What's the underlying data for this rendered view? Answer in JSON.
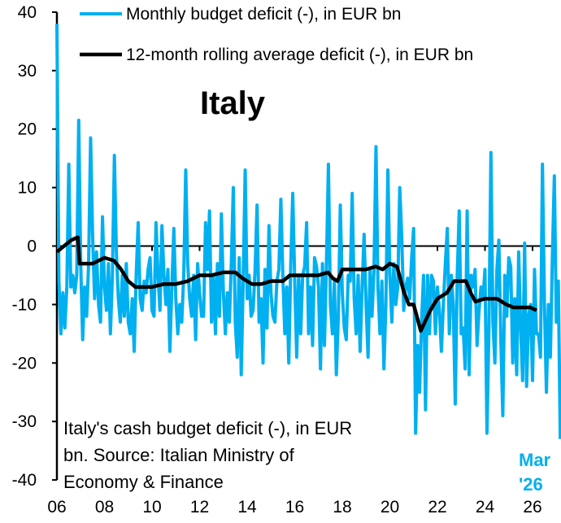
{
  "chart_data": {
    "type": "line",
    "title": "Italy",
    "xlabel": "",
    "ylabel": "",
    "ylim": [
      -40,
      40
    ],
    "yticks": [
      40,
      30,
      20,
      10,
      0,
      -10,
      -20,
      -30,
      -40
    ],
    "xlim": [
      2006,
      2026.5
    ],
    "xticks": [
      {
        "value": 2006,
        "label": "06"
      },
      {
        "value": 2008,
        "label": "08"
      },
      {
        "value": 2010,
        "label": "10"
      },
      {
        "value": 2012,
        "label": "12"
      },
      {
        "value": 2014,
        "label": "14"
      },
      {
        "value": 2016,
        "label": "16"
      },
      {
        "value": 2018,
        "label": "18"
      },
      {
        "value": 2020,
        "label": "20"
      },
      {
        "value": 2022,
        "label": "22"
      },
      {
        "value": 2024,
        "label": "24"
      },
      {
        "value": 2026,
        "label": "26"
      }
    ],
    "grid": false,
    "legend_position": "top",
    "annotation": [
      "Italy's cash budget deficit (-), in EUR",
      "bn. Source: Italian Ministry of",
      "Economy & Finance"
    ],
    "last_label": [
      "Mar",
      "'26"
    ],
    "colors": {
      "monthly": "#00B0F0",
      "rolling": "#000000"
    },
    "series": [
      {
        "name": "Monthly budget deficit (-), in EUR bn",
        "start": "2006-01",
        "frequency": "monthly",
        "values": [
          38,
          -6,
          -15,
          -8,
          -14,
          -7,
          14,
          -7,
          -5,
          -8,
          -5,
          21.5,
          -3,
          -16,
          -7,
          -12,
          -3,
          18.5,
          2,
          -9,
          -1,
          -10,
          -13,
          5,
          -7,
          -11,
          -3,
          -15,
          -5,
          15.5,
          -1,
          -9,
          -13,
          -5,
          -12,
          -3,
          -13,
          -15,
          -9,
          -18,
          -5,
          4,
          -9,
          -11,
          -6,
          -8,
          -4,
          -2,
          -11,
          -12,
          4,
          -5,
          -11,
          3.5,
          -5,
          -10,
          -4,
          -18,
          -7,
          3,
          -9,
          -15,
          -10,
          -13,
          -5,
          13,
          -3,
          -9,
          -12,
          -5,
          -16,
          -3,
          -8,
          -12,
          -12,
          4,
          -4,
          6,
          -13,
          -5,
          -15,
          -3,
          -12,
          5.5,
          -8,
          -15,
          -8,
          -13,
          -3,
          10,
          -13,
          -19,
          -2,
          -22,
          -6,
          13,
          -9,
          -5,
          -12,
          -11,
          -4,
          7,
          -13,
          -9,
          -20,
          -4,
          -14,
          3.5,
          -8,
          -12,
          -13,
          -6,
          -4,
          8,
          -5,
          -15,
          -7,
          -20,
          -3,
          9,
          -6,
          -19,
          -5,
          -15,
          -5,
          -3.5,
          4,
          -15,
          -7,
          -17,
          -2,
          -3.5,
          -7,
          -21,
          -3,
          -17,
          -3,
          14,
          -10,
          -15,
          -6,
          -22,
          -12,
          7,
          -8,
          -14,
          -16,
          -5,
          -6,
          9,
          -9,
          -15,
          -5,
          -18,
          -7,
          2,
          -10,
          -19,
          -4,
          -12,
          -4,
          17,
          -7,
          -15,
          -6,
          -21,
          -10,
          13,
          -5,
          -13,
          -3,
          -10,
          -7,
          10,
          1.5,
          -11,
          -7,
          -5.5,
          -9,
          -2,
          3,
          -32,
          -17,
          -25,
          -13,
          -5,
          -28,
          -5,
          -15,
          -5,
          -6,
          -15,
          -7,
          -11,
          -18,
          -10,
          -3,
          3,
          -15,
          -5,
          -10,
          -27,
          -5,
          6,
          -15,
          -14,
          -21,
          6,
          -22,
          -5,
          -7,
          -4,
          -17,
          -11,
          -7,
          -9,
          -4,
          -32,
          -14,
          16,
          -13,
          -20,
          -4,
          1,
          -16,
          -29,
          -5,
          -12,
          -2,
          -3.5,
          -20,
          -9,
          -22,
          -1,
          -14,
          -23,
          0.5,
          -24,
          -12,
          -10,
          -23,
          -4,
          -15,
          -15,
          -19,
          14,
          -10,
          -25,
          -10,
          -19,
          -2,
          12,
          -13,
          -6,
          -33
        ]
      },
      {
        "name": "12-month rolling average deficit (-), in EUR bn",
        "points": [
          [
            2006.0,
            -1
          ],
          [
            2006.3,
            0
          ],
          [
            2006.6,
            1
          ],
          [
            2006.88,
            1.5
          ],
          [
            2006.95,
            -3
          ],
          [
            2007.5,
            -3
          ],
          [
            2008.0,
            -2
          ],
          [
            2008.4,
            -2.5
          ],
          [
            2008.7,
            -4
          ],
          [
            2009.0,
            -6
          ],
          [
            2009.3,
            -7
          ],
          [
            2010.0,
            -7
          ],
          [
            2010.5,
            -6.5
          ],
          [
            2011.0,
            -6.5
          ],
          [
            2011.5,
            -6
          ],
          [
            2012.0,
            -5
          ],
          [
            2012.5,
            -5
          ],
          [
            2013.0,
            -4.5
          ],
          [
            2013.5,
            -4.5
          ],
          [
            2013.8,
            -5.5
          ],
          [
            2014.2,
            -6.5
          ],
          [
            2014.6,
            -6.5
          ],
          [
            2015.0,
            -6
          ],
          [
            2015.5,
            -6
          ],
          [
            2015.8,
            -5
          ],
          [
            2016.2,
            -5
          ],
          [
            2016.6,
            -5
          ],
          [
            2017.0,
            -5
          ],
          [
            2017.4,
            -4.5
          ],
          [
            2017.6,
            -5.5
          ],
          [
            2017.8,
            -6
          ],
          [
            2018.0,
            -4
          ],
          [
            2018.5,
            -4
          ],
          [
            2019.0,
            -4
          ],
          [
            2019.4,
            -3.5
          ],
          [
            2019.7,
            -4
          ],
          [
            2020.0,
            -3
          ],
          [
            2020.3,
            -3.5
          ],
          [
            2020.6,
            -8
          ],
          [
            2020.8,
            -10
          ],
          [
            2021.0,
            -10
          ],
          [
            2021.3,
            -14.5
          ],
          [
            2021.7,
            -11
          ],
          [
            2022.0,
            -9
          ],
          [
            2022.4,
            -8
          ],
          [
            2022.7,
            -6
          ],
          [
            2022.9,
            -6
          ],
          [
            2023.2,
            -6
          ],
          [
            2023.4,
            -8
          ],
          [
            2023.6,
            -9.5
          ],
          [
            2024.0,
            -9
          ],
          [
            2024.5,
            -9
          ],
          [
            2024.9,
            -10
          ],
          [
            2025.2,
            -10.5
          ],
          [
            2025.6,
            -10.5
          ],
          [
            2025.9,
            -10.5
          ],
          [
            2026.17,
            -11
          ]
        ]
      }
    ]
  }
}
